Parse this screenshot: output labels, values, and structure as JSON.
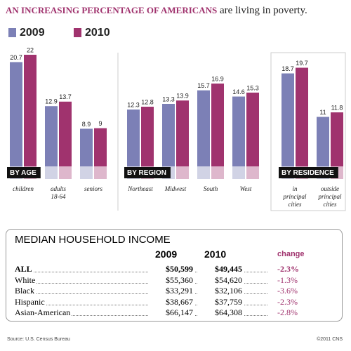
{
  "title": {
    "emphasis": "AN INCREASING PERCENTAGE OF AMERICANS",
    "rest": "are living in poverty."
  },
  "chart_data": {
    "type": "bar",
    "series": [
      {
        "name": "2009",
        "color": "#7c80b6"
      },
      {
        "name": "2010",
        "color": "#a0336e"
      }
    ],
    "ylim": [
      0,
      22
    ],
    "groups": [
      {
        "label": "BY AGE",
        "categories": [
          "children",
          "adults\n18-64",
          "seniors"
        ],
        "values": [
          [
            20.7,
            12.9,
            8.9
          ],
          [
            22,
            13.7,
            9
          ]
        ]
      },
      {
        "label": "BY REGION",
        "categories": [
          "Northeast",
          "Midwest",
          "South",
          "West"
        ],
        "values": [
          [
            12.3,
            13.3,
            15.7,
            14.6
          ],
          [
            12.8,
            13.9,
            16.9,
            15.3
          ]
        ]
      },
      {
        "label": "BY RESIDENCE",
        "categories": [
          "in\nprincipal\ncities",
          "outside\nprincipal\ncities"
        ],
        "values": [
          [
            18.7,
            11
          ],
          [
            19.7,
            11.8
          ]
        ]
      }
    ]
  },
  "table": {
    "title": "MEDIAN HOUSEHOLD INCOME",
    "columns": [
      "2009",
      "2010",
      "change"
    ],
    "rows": [
      [
        "ALL",
        "$50,599",
        "$49,445",
        "-2.3%"
      ],
      [
        "White",
        "$55,360",
        "$54,620",
        "-1.3%"
      ],
      [
        "Black",
        "$33,291",
        "$32,106",
        "-3.6%"
      ],
      [
        "Hispanic",
        "$38,667",
        "$37,759",
        "-2.3%"
      ],
      [
        "Asian-American",
        "$66,147",
        "$64,308",
        "-2.8%"
      ]
    ]
  },
  "source": "Source: U.S. Census Bureau",
  "credit": "©2011 CNS"
}
